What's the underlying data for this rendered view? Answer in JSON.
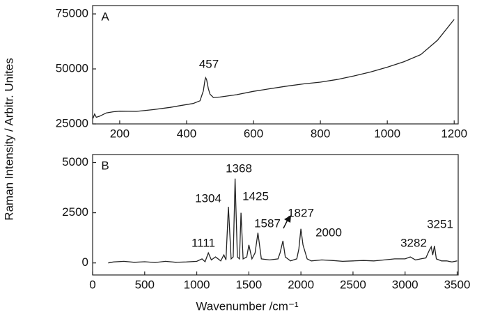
{
  "chart_data": [
    {
      "type": "line",
      "panel": "A",
      "ylabel": "Raman Intensity / Arbitr. Unites",
      "color": "#222222",
      "x": [
        120,
        125,
        130,
        140,
        160,
        180,
        200,
        250,
        300,
        350,
        400,
        420,
        440,
        450,
        455,
        457,
        460,
        465,
        470,
        480,
        500,
        550,
        600,
        650,
        700,
        750,
        800,
        850,
        900,
        950,
        1000,
        1050,
        1100,
        1150,
        1200
      ],
      "values": [
        27500,
        29500,
        28000,
        28500,
        30000,
        30500,
        30800,
        30700,
        31500,
        32500,
        33800,
        34300,
        35500,
        40000,
        45000,
        46000,
        45000,
        41000,
        38500,
        37000,
        37200,
        38300,
        39800,
        41000,
        42200,
        43200,
        44000,
        45200,
        46800,
        48600,
        50800,
        53300,
        56500,
        63000,
        72500
      ],
      "xlim": [
        119,
        1212
      ],
      "ylim": [
        25000,
        78800
      ],
      "xticks": [
        200,
        400,
        600,
        800,
        1000,
        1200
      ],
      "yticks": [
        25000,
        50000,
        75000
      ],
      "annotations": [
        "457"
      ]
    },
    {
      "type": "line",
      "panel": "B",
      "xlabel": "Wavenumber /cm⁻¹",
      "color": "#222222",
      "x": [
        150,
        200,
        300,
        400,
        500,
        600,
        700,
        800,
        900,
        1000,
        1050,
        1080,
        1111,
        1140,
        1180,
        1230,
        1260,
        1280,
        1304,
        1330,
        1350,
        1368,
        1390,
        1410,
        1425,
        1445,
        1480,
        1500,
        1530,
        1560,
        1587,
        1620,
        1700,
        1780,
        1800,
        1827,
        1850,
        1900,
        1960,
        1980,
        2000,
        2020,
        2060,
        2100,
        2200,
        2300,
        2400,
        2500,
        2600,
        2700,
        2800,
        2900,
        3000,
        3050,
        3100,
        3150,
        3200,
        3230,
        3251,
        3265,
        3282,
        3300,
        3350,
        3400,
        3450,
        3500
      ],
      "values": [
        0,
        50,
        80,
        30,
        60,
        20,
        80,
        30,
        50,
        80,
        200,
        60,
        500,
        150,
        300,
        100,
        400,
        150,
        2800,
        200,
        300,
        4200,
        300,
        200,
        2500,
        200,
        300,
        900,
        200,
        500,
        1500,
        200,
        150,
        200,
        500,
        1100,
        300,
        100,
        200,
        700,
        1700,
        900,
        200,
        100,
        150,
        120,
        80,
        100,
        120,
        100,
        150,
        200,
        200,
        300,
        150,
        200,
        250,
        600,
        800,
        400,
        850,
        200,
        100,
        100,
        50,
        100
      ],
      "xlim": [
        0,
        3510
      ],
      "ylim": [
        -600,
        5400
      ],
      "xticks": [
        0,
        500,
        1000,
        1500,
        2000,
        2500,
        3000,
        3500
      ],
      "yticks": [
        0,
        2500,
        5000
      ],
      "annotations": [
        "1111",
        "1304",
        "1368",
        "1425",
        "1587",
        "1827",
        "2000",
        "3282",
        "3251"
      ]
    }
  ]
}
